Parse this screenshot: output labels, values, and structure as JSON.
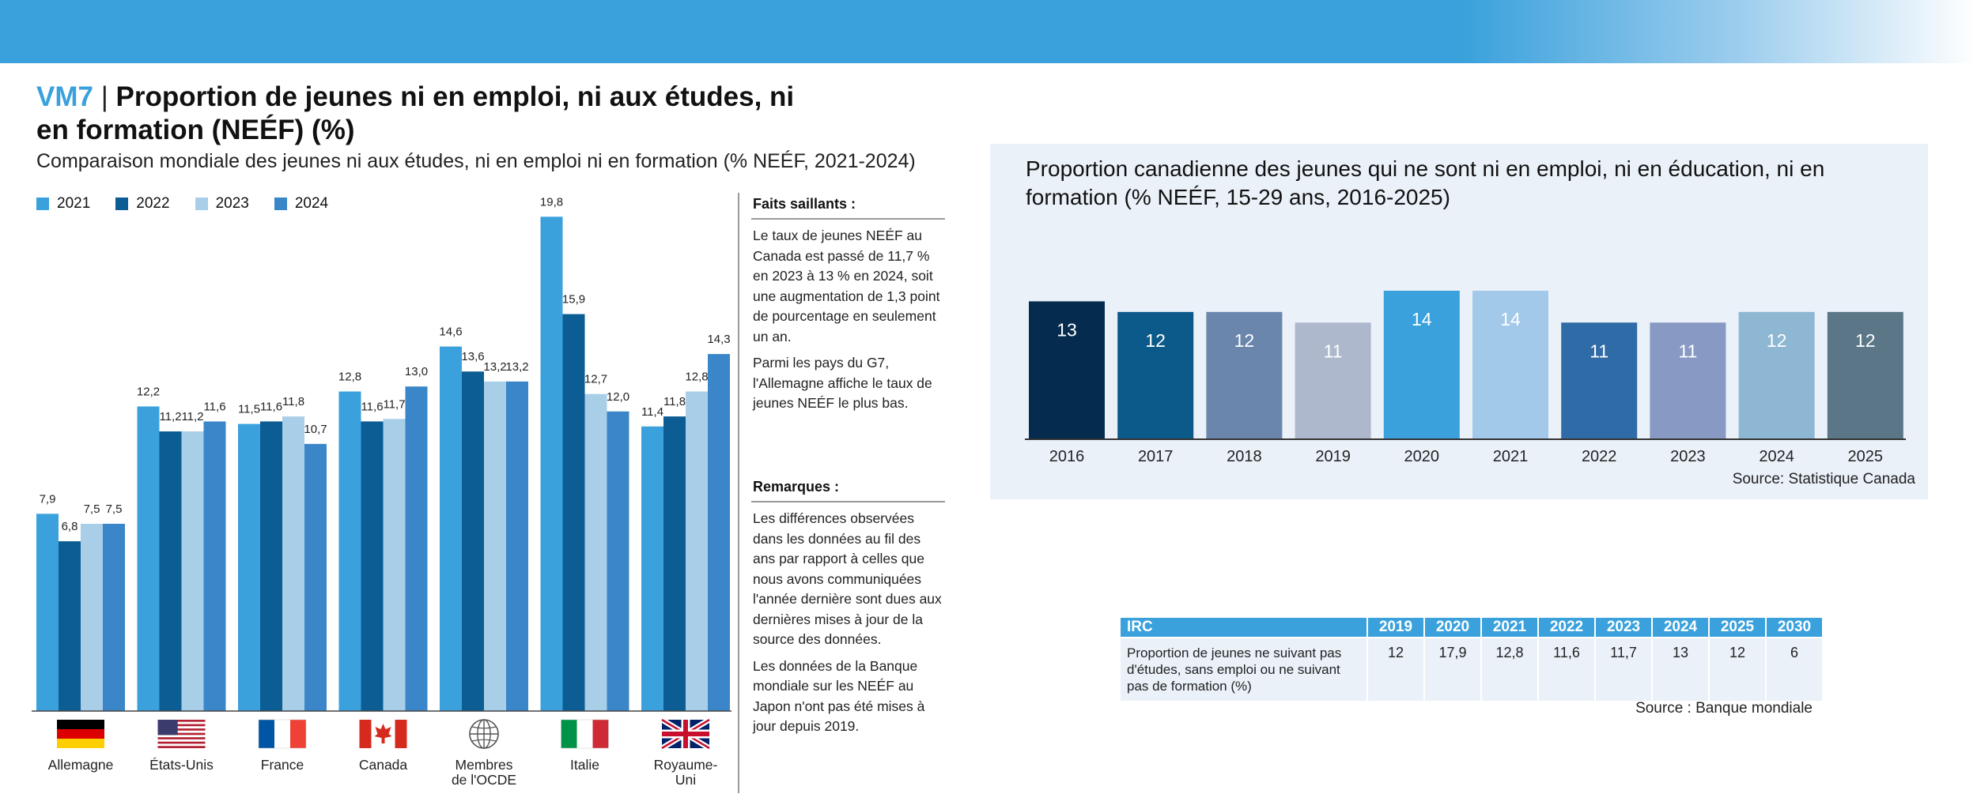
{
  "header": {
    "code": "VM7",
    "separator": "|",
    "title": "Proportion de jeunes ni en emploi, ni aux études, ni en formation (NEÉF) (%)",
    "subtitle": "Comparaison mondiale des jeunes ni aux études, ni en emploi ni en formation (% NEÉF, 2021-2024)"
  },
  "colors": {
    "banner": "#3aa1dc",
    "y2021": "#3aa1dc",
    "y2022": "#0b5d93",
    "y2023": "#a9cfe8",
    "y2024": "#3a86c8"
  },
  "sidebar": {
    "faits_title": "Faits saillants :",
    "faits": [
      "Le taux de jeunes NEÉF au Canada est passé de 11,7 % en 2023 à 13 % en 2024, soit une augmentation de 1,3 point de pourcentage en seulement un an.",
      "Parmi les pays du G7, l'Allemagne affiche le taux de jeunes NEÉF le plus bas."
    ],
    "remarques_title": "Remarques :",
    "remarques": [
      "Les différences observées dans les données au fil des ans par rapport à celles que nous avons communiquées l'année dernière sont dues aux dernières mises à jour de la source des données.",
      "Les données de la Banque mondiale sur les NEÉF au Japon n'ont pas été mises à jour depuis 2019."
    ]
  },
  "chart_data": [
    {
      "type": "bar",
      "title": "Comparaison mondiale des jeunes ni aux études, ni en emploi ni en formation (% NEÉF, 2021-2024)",
      "categories": [
        "Allemagne",
        "États-Unis",
        "France",
        "Canada",
        "Membres de l'OCDE",
        "Italie",
        "Royaume-Uni"
      ],
      "category_labels": [
        [
          "Allemagne"
        ],
        [
          "États-Unis"
        ],
        [
          "France"
        ],
        [
          "Canada"
        ],
        [
          "Membres",
          "de l'OCDE"
        ],
        [
          "Italie"
        ],
        [
          "Royaume-",
          "Uni"
        ]
      ],
      "category_icons": [
        "flag-germany",
        "flag-usa",
        "flag-france",
        "flag-canada",
        "globe-icon",
        "flag-italy",
        "flag-uk"
      ],
      "series": [
        {
          "name": "2021",
          "values": [
            7.9,
            12.2,
            11.5,
            12.8,
            14.6,
            19.8,
            11.4
          ],
          "labels": [
            "7,9",
            "12,2",
            "11,5",
            "12,8",
            "14,6",
            "19,8",
            "11,4"
          ]
        },
        {
          "name": "2022",
          "values": [
            6.8,
            11.2,
            11.6,
            11.6,
            13.6,
            15.9,
            11.8
          ],
          "labels": [
            "6,8",
            "11,2",
            "11,6",
            "11,6",
            "13,6",
            "15,9",
            "11,8"
          ]
        },
        {
          "name": "2023",
          "values": [
            7.5,
            11.2,
            11.8,
            11.7,
            13.2,
            12.7,
            12.8
          ],
          "labels": [
            "7,5",
            "11,2",
            "11,8",
            "11,7",
            "13,2",
            "12,7",
            "12,8"
          ]
        },
        {
          "name": "2024",
          "values": [
            7.5,
            11.6,
            10.7,
            13.0,
            13.2,
            12.0,
            14.3
          ],
          "labels": [
            "7,5",
            "11,6",
            "10,7",
            "13,0",
            "13,2",
            "12,0",
            "14,3"
          ]
        }
      ],
      "ylim": [
        0,
        20
      ],
      "legend": "top-left",
      "grid": false
    },
    {
      "type": "bar",
      "title": "Proportion canadienne des jeunes qui ne sont ni en emploi, ni en éducation, ni en formation (% NEÉF, 15-29 ans, 2016-2025)",
      "categories": [
        "2016",
        "2017",
        "2018",
        "2019",
        "2020",
        "2021",
        "2022",
        "2023",
        "2024",
        "2025"
      ],
      "values": [
        13,
        12,
        12,
        11,
        14,
        14,
        11,
        11,
        12,
        12
      ],
      "bar_colors": [
        "#052c4f",
        "#0b5a8a",
        "#6a86ad",
        "#adb8cc",
        "#3aa1dc",
        "#a3c9ea",
        "#2f6ba6",
        "#8899c4",
        "#8db7d3",
        "#5a7687"
      ],
      "ylim": [
        0,
        14
      ],
      "source": "Source: Statistique Canada"
    }
  ],
  "irc_table": {
    "header_label": "IRC",
    "years": [
      "2019",
      "2020",
      "2021",
      "2022",
      "2023",
      "2024",
      "2025",
      "2030"
    ],
    "row_label": "Proportion de jeunes ne suivant pas d'études, sans emploi ou ne suivant pas de formation (%)",
    "values": [
      "12",
      "17,9",
      "12,8",
      "11,6",
      "11,7",
      "13",
      "12",
      "6"
    ],
    "source": "Source : Banque mondiale"
  }
}
